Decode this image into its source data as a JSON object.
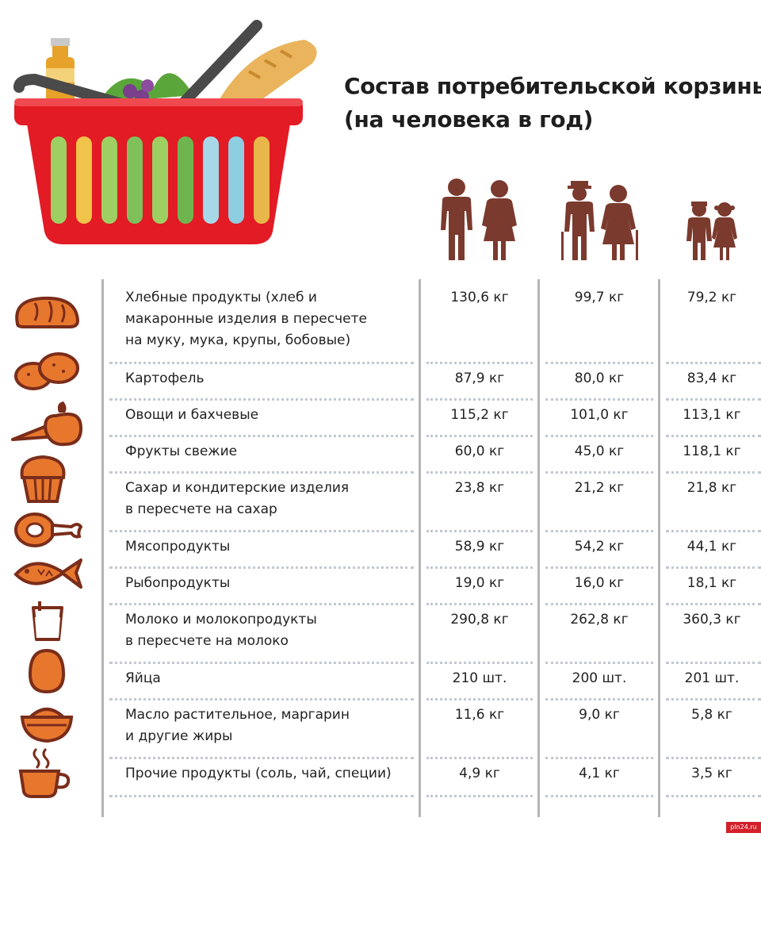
{
  "title": {
    "line1": "Состав потребительской корзины",
    "line2": "(на человека в год)"
  },
  "columns": [
    {
      "group": "adults-icon"
    },
    {
      "group": "seniors-icon"
    },
    {
      "group": "children-icon"
    }
  ],
  "rows": [
    {
      "icon": "bread-loaf-icon",
      "lines": [
        "Хлебные продукты (хлеб и",
        "макаронные изделия в пересчете",
        "на муку, мука, крупы, бобовые)"
      ],
      "v1": "130,6 кг",
      "v2": "99,7 кг",
      "v3": "79,2 кг"
    },
    {
      "icon": "potato-icon",
      "lines": [
        "Картофель"
      ],
      "v1": "87,9 кг",
      "v2": "80,0 кг",
      "v3": "83,4 кг"
    },
    {
      "icon": "carrot-apple-icon",
      "lines": [
        "Овощи и бахчевые"
      ],
      "v1": "115,2 кг",
      "v2": "101,0 кг",
      "v3": "113,1 кг"
    },
    {
      "icon": "muffin-icon",
      "lines": [
        "Фрукты свежие"
      ],
      "v1": "60,0 кг",
      "v2": "45,0 кг",
      "v3": "118,1 кг"
    },
    {
      "icon": "ham-icon",
      "lines": [
        "Сахар и кондитерские изделия",
        "в пересчете на сахар"
      ],
      "v1": "23,8 кг",
      "v2": "21,2 кг",
      "v3": "21,8 кг"
    },
    {
      "icon": "fish-icon",
      "lines": [
        "Мясопродукты"
      ],
      "v1": "58,9 кг",
      "v2": "54,2 кг",
      "v3": "44,1 кг"
    },
    {
      "icon": "milk-glass-icon",
      "lines": [
        "Рыбопродукты"
      ],
      "v1": "19,0 кг",
      "v2": "16,0 кг",
      "v3": "18,1 кг"
    },
    {
      "icon": "egg-icon",
      "lines": [
        "Молоко и молокопродукты",
        "в пересчете на молоко"
      ],
      "v1": "290,8 кг",
      "v2": "262,8 кг",
      "v3": "360,3 кг"
    },
    {
      "icon": "bowl-icon",
      "lines": [
        "Яйца"
      ],
      "v1": "210 шт.",
      "v2": "200 шт.",
      "v3": "201 шт."
    },
    {
      "icon": "tea-cup-icon",
      "lines": [
        "Масло растительное, маргарин",
        "и другие жиры"
      ],
      "v1": "11,6 кг",
      "v2": "9,0 кг",
      "v3": "5,8 кг"
    },
    {
      "icon": "none",
      "lines": [
        "Прочие продукты (соль, чай, специи)"
      ],
      "v1": "4,9 кг",
      "v2": "4,1 кг",
      "v3": "3,5 кг"
    }
  ],
  "source": "pln24.ru",
  "colors": {
    "icon_orange": "#e8772e",
    "icon_outline": "#7a2d1a",
    "people": "#7b3a2e",
    "basket_red": "#e21b25",
    "title": "#1e1e1e"
  }
}
